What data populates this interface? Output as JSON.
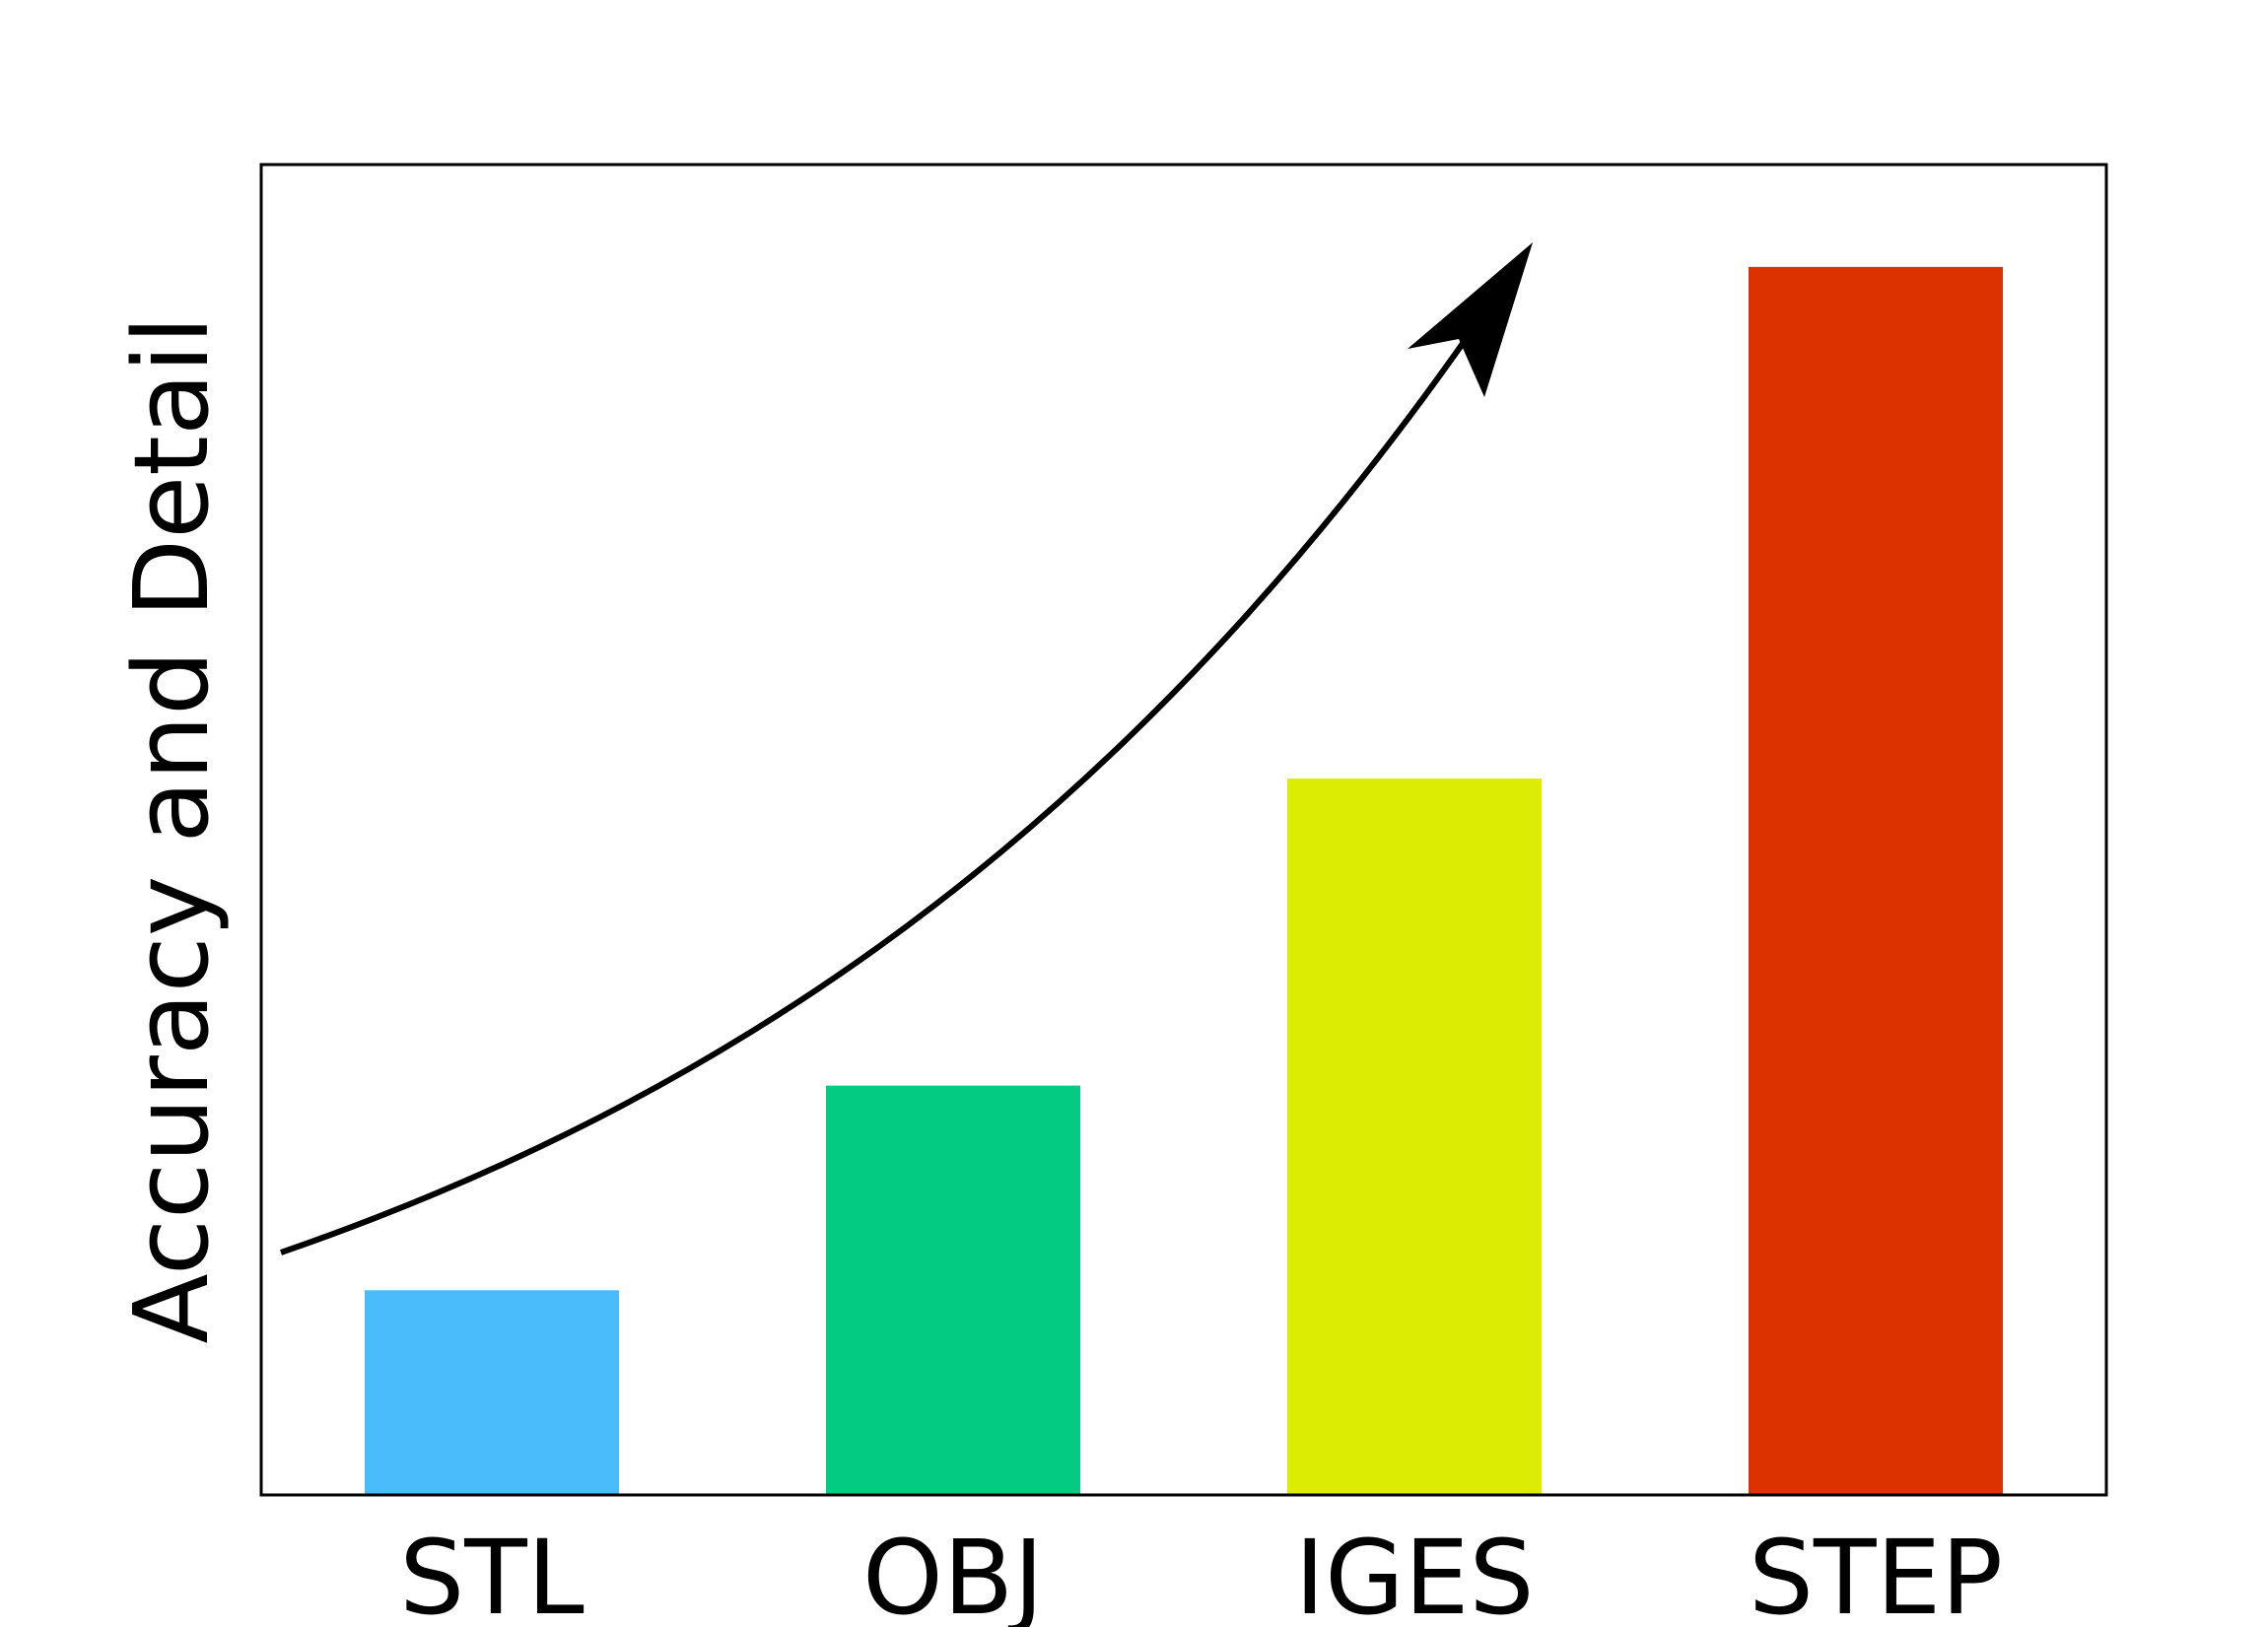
{
  "chart_data": {
    "type": "bar",
    "title": "",
    "xlabel": "",
    "ylabel": "Accuracy and Detail",
    "categories": [
      "STL",
      "OBJ",
      "IGES",
      "STEP"
    ],
    "values": [
      1.0,
      2.0,
      3.5,
      6.0
    ],
    "colors": [
      "#4abcfc",
      "#03cb81",
      "#dcec03",
      "#dc3200"
    ],
    "ylim": [
      0,
      6.5
    ],
    "y_ticks_shown": false,
    "grid": false,
    "legend": "none",
    "annotations": [
      {
        "type": "arrow",
        "meaning": "increasing trend from STL to STEP",
        "color": "#000000"
      }
    ]
  }
}
